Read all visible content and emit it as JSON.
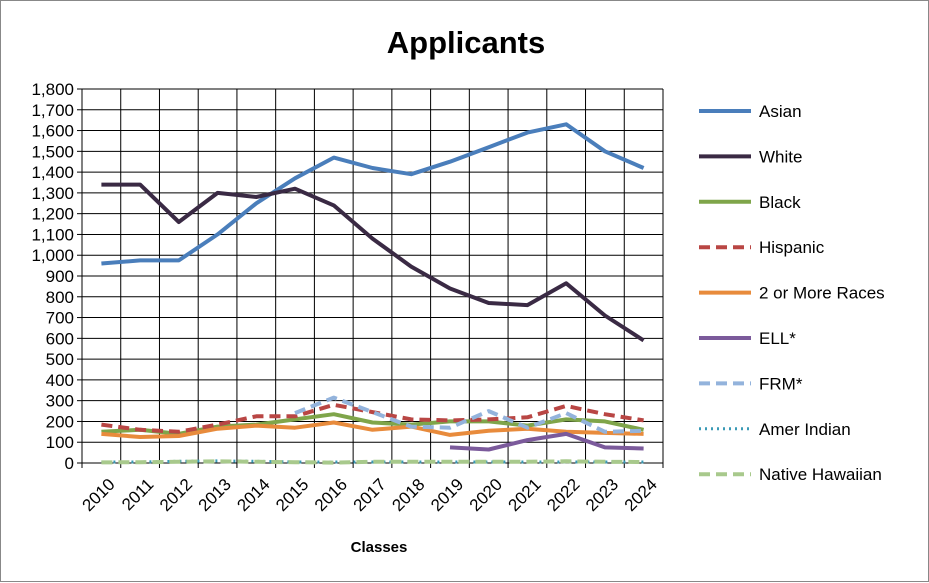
{
  "chart_data": {
    "type": "line",
    "title": "Applicants",
    "xlabel": "Classes",
    "ylabel": "",
    "ylim": [
      0,
      1800
    ],
    "ytick_step": 100,
    "ytick_labels": [
      "0",
      "100",
      "200",
      "300",
      "400",
      "500",
      "600",
      "700",
      "800",
      "900",
      "1,000",
      "1,100",
      "1,200",
      "1,300",
      "1,400",
      "1,500",
      "1,600",
      "1,700",
      "1,800"
    ],
    "categories": [
      "2010",
      "2011",
      "2012",
      "2013",
      "2014",
      "2015",
      "2016",
      "2017",
      "2018",
      "2019",
      "2020",
      "2021",
      "2022",
      "2023",
      "2024"
    ],
    "grid": true,
    "legend_position": "right",
    "series": [
      {
        "name": "Asian",
        "color": "#4a7ebb",
        "dash": "solid",
        "values": [
          960,
          975,
          975,
          1100,
          1250,
          1370,
          1470,
          1420,
          1390,
          1450,
          1520,
          1590,
          1630,
          1500,
          1420
        ]
      },
      {
        "name": "White",
        "color": "#3a2a44",
        "dash": "solid",
        "values": [
          1340,
          1340,
          1160,
          1300,
          1280,
          1320,
          1240,
          1080,
          945,
          840,
          770,
          760,
          865,
          710,
          590
        ]
      },
      {
        "name": "Black",
        "color": "#7fa54a",
        "dash": "solid",
        "values": [
          150,
          160,
          140,
          175,
          185,
          210,
          235,
          195,
          185,
          200,
          200,
          180,
          210,
          200,
          160
        ]
      },
      {
        "name": "Hispanic",
        "color": "#b94644",
        "dash": "dashed",
        "values": [
          185,
          160,
          150,
          185,
          225,
          225,
          280,
          245,
          210,
          205,
          210,
          220,
          275,
          235,
          205
        ]
      },
      {
        "name": "2 or More Races",
        "color": "#e88b3c",
        "dash": "solid",
        "values": [
          140,
          125,
          130,
          165,
          180,
          170,
          195,
          160,
          175,
          135,
          155,
          165,
          150,
          145,
          140
        ]
      },
      {
        "name": "ELL*",
        "color": "#7b5a9b",
        "dash": "solid",
        "values": [
          null,
          null,
          null,
          null,
          null,
          null,
          null,
          null,
          null,
          75,
          65,
          110,
          140,
          75,
          70
        ]
      },
      {
        "name": "FRM*",
        "color": "#93b3dc",
        "dash": "dashed",
        "values": [
          null,
          null,
          null,
          null,
          null,
          240,
          315,
          245,
          175,
          170,
          250,
          170,
          240,
          150,
          155
        ]
      },
      {
        "name": "Amer Indian",
        "color": "#3a9ab6",
        "dash": "dotted",
        "values": [
          5,
          5,
          8,
          10,
          8,
          5,
          5,
          5,
          5,
          5,
          5,
          5,
          5,
          5,
          5
        ]
      },
      {
        "name": "Native Hawaiian",
        "color": "#a8c98c",
        "dash": "dashed",
        "values": [
          3,
          4,
          6,
          8,
          6,
          4,
          2,
          6,
          6,
          6,
          6,
          6,
          8,
          6,
          5
        ]
      }
    ]
  }
}
